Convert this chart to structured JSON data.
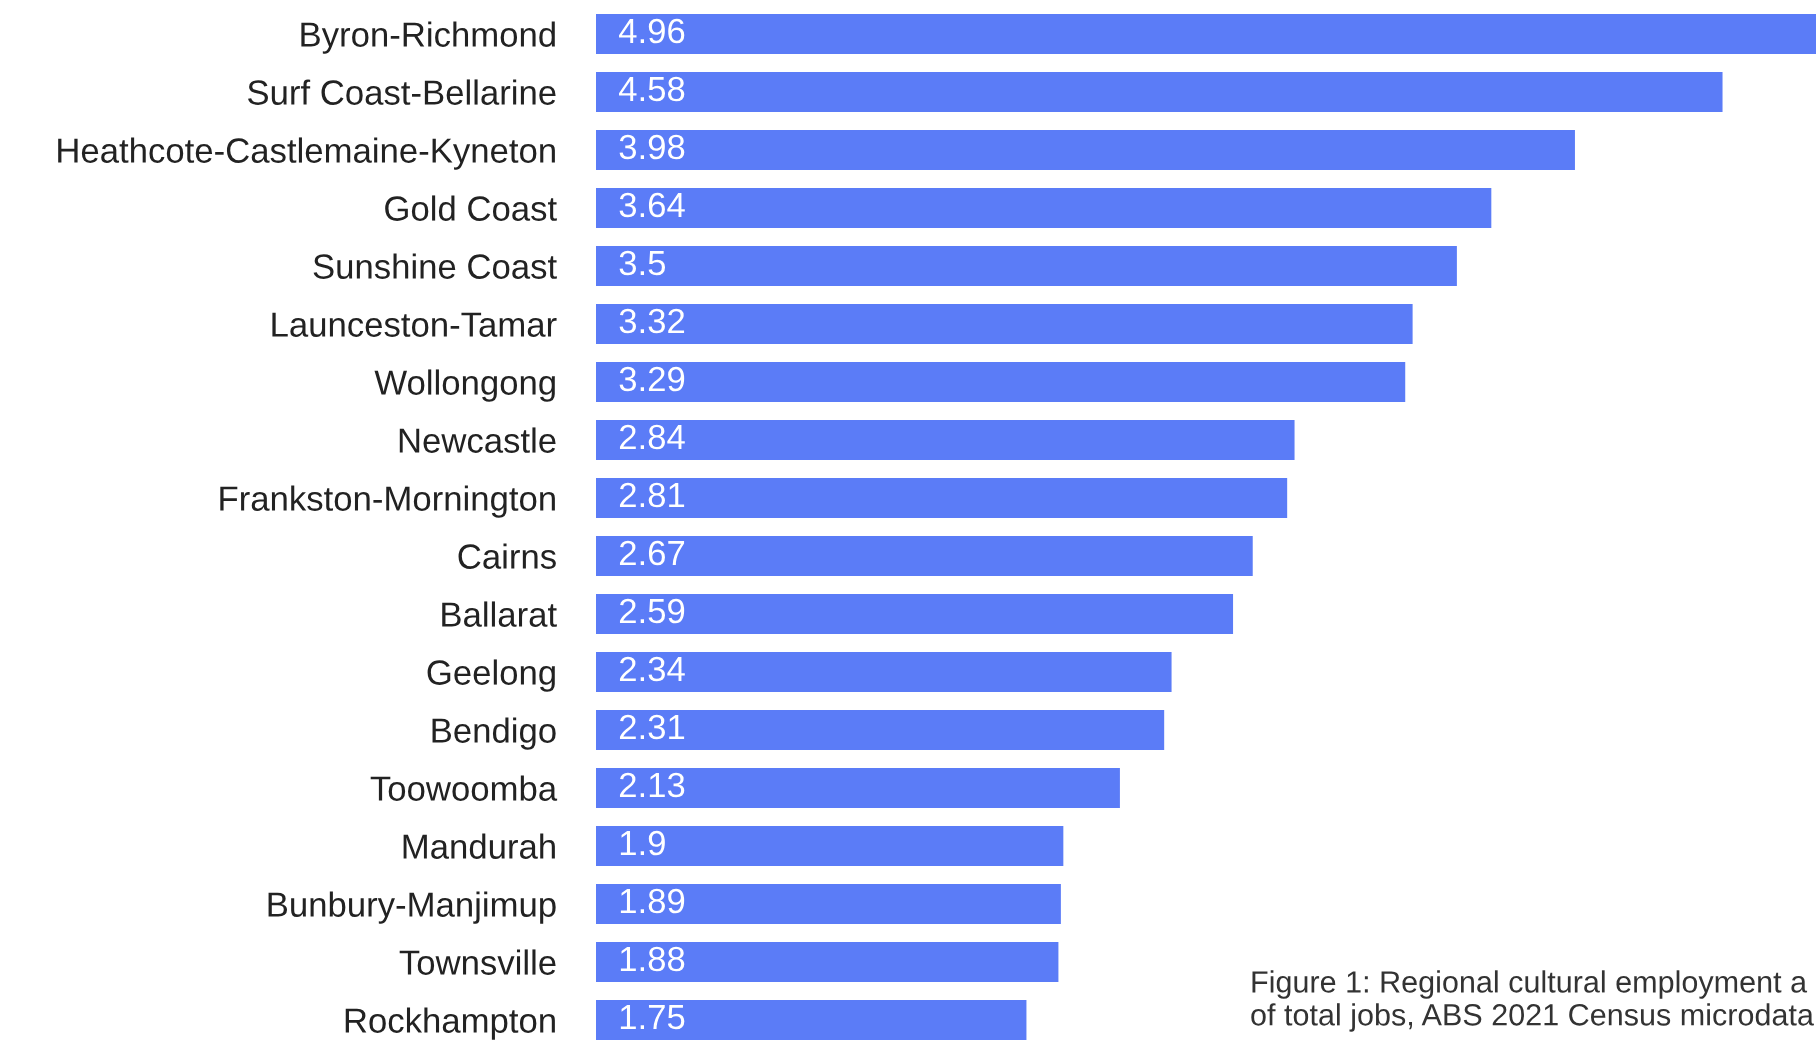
{
  "chart_data": {
    "type": "bar",
    "orientation": "horizontal",
    "categories": [
      "Byron-Richmond",
      "Surf Coast-Bellarine",
      "Heathcote-Castlemaine-Kyneton",
      "Gold Coast",
      "Sunshine Coast",
      "Launceston-Tamar",
      "Wollongong",
      "Newcastle",
      "Frankston-Mornington",
      "Cairns",
      "Ballarat",
      "Geelong",
      "Bendigo",
      "Toowoomba",
      "Mandurah",
      "Bunbury-Manjimup",
      "Townsville",
      "Rockhampton"
    ],
    "values": [
      4.96,
      4.58,
      3.98,
      3.64,
      3.5,
      3.32,
      3.29,
      2.84,
      2.81,
      2.67,
      2.59,
      2.34,
      2.31,
      2.13,
      1.9,
      1.89,
      1.88,
      1.75
    ],
    "color": "#5b7cf7",
    "xlim": [
      0,
      4.96
    ],
    "data_labels": true,
    "annotations": [
      "Figure 1: Regional cultural employment a\nof total jobs, ABS 2021 Census microdata"
    ]
  }
}
